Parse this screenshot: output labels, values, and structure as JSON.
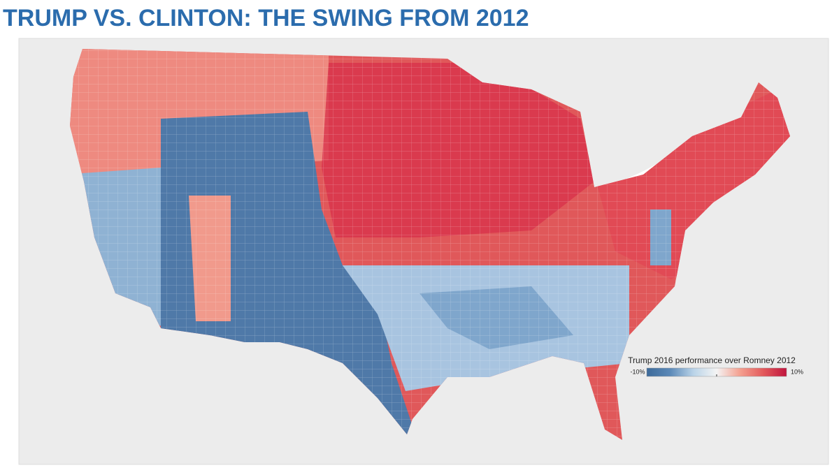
{
  "header": {
    "title": "TRUMP VS. CLINTON: THE SWING FROM 2012"
  },
  "legend": {
    "title": "Trump 2016 performance over Romney 2012",
    "min": {
      "value": -10,
      "label": "-10%"
    },
    "max": {
      "value": 10,
      "label": "10%"
    },
    "colors": [
      "#3d6a9a",
      "#5b89b8",
      "#b9d3e8",
      "#f4f4f4",
      "#f4a090",
      "#e35a5c",
      "#c0153e"
    ]
  }
}
